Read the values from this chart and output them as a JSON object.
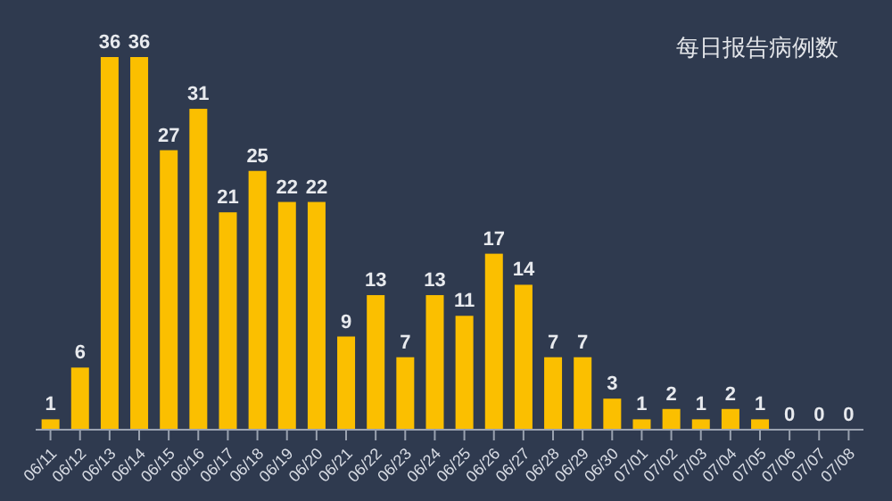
{
  "chart_data": {
    "type": "bar",
    "title": "每日报告病例数",
    "categories": [
      "06/11",
      "06/12",
      "06/13",
      "06/14",
      "06/15",
      "06/16",
      "06/17",
      "06/18",
      "06/19",
      "06/20",
      "06/21",
      "06/22",
      "06/23",
      "06/24",
      "06/25",
      "06/26",
      "06/27",
      "06/28",
      "06/29",
      "06/30",
      "07/01",
      "07/02",
      "07/03",
      "07/04",
      "07/05",
      "07/06",
      "07/07",
      "07/08"
    ],
    "values": [
      1,
      6,
      36,
      36,
      27,
      31,
      21,
      25,
      22,
      22,
      9,
      13,
      7,
      13,
      11,
      17,
      14,
      7,
      7,
      3,
      1,
      2,
      1,
      2,
      1,
      0,
      0,
      0
    ],
    "color": "#fbbf00",
    "data_labels": true
  }
}
